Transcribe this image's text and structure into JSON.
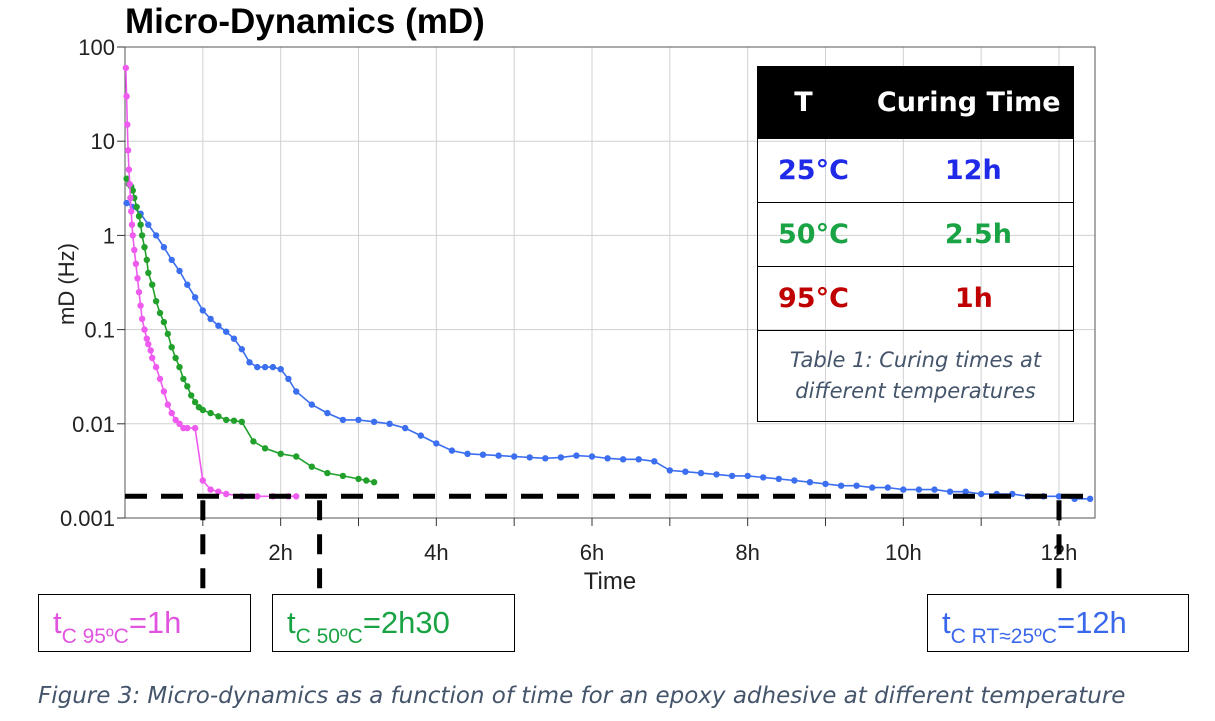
{
  "title": "Micro-Dynamics (mD)",
  "chart_data": {
    "type": "scatter",
    "title": "Micro-Dynamics (mD)",
    "xlabel": "Time",
    "ylabel": "mD (Hz)",
    "x_unit": "h",
    "xlim": [
      0,
      12.5
    ],
    "ylim": [
      0.001,
      100
    ],
    "yscale": "log",
    "x_ticks": [
      0,
      1,
      2,
      3,
      4,
      5,
      6,
      7,
      8,
      9,
      10,
      11,
      12
    ],
    "x_tick_labels": [
      {
        "x": 2,
        "label": "2h"
      },
      {
        "x": 4,
        "label": "4h"
      },
      {
        "x": 6,
        "label": "6h"
      },
      {
        "x": 8,
        "label": "8h"
      },
      {
        "x": 10,
        "label": "10h"
      },
      {
        "x": 12,
        "label": "12h"
      }
    ],
    "y_ticks": [
      0.001,
      0.01,
      0.1,
      1,
      10,
      100
    ],
    "y_tick_labels": [
      "0.001",
      "0.01",
      "0.1",
      "1",
      "10",
      "100"
    ],
    "grid": true,
    "series": [
      {
        "key": "25C",
        "color": "#3c6ef0",
        "points": [
          [
            0.02,
            2.2
          ],
          [
            0.1,
            2.0
          ],
          [
            0.2,
            1.7
          ],
          [
            0.3,
            1.3
          ],
          [
            0.4,
            1.0
          ],
          [
            0.5,
            0.75
          ],
          [
            0.6,
            0.55
          ],
          [
            0.7,
            0.42
          ],
          [
            0.8,
            0.3
          ],
          [
            0.9,
            0.22
          ],
          [
            1.0,
            0.16
          ],
          [
            1.1,
            0.13
          ],
          [
            1.2,
            0.11
          ],
          [
            1.3,
            0.095
          ],
          [
            1.4,
            0.08
          ],
          [
            1.5,
            0.062
          ],
          [
            1.6,
            0.045
          ],
          [
            1.7,
            0.04
          ],
          [
            1.8,
            0.04
          ],
          [
            1.9,
            0.04
          ],
          [
            2.0,
            0.038
          ],
          [
            2.1,
            0.03
          ],
          [
            2.2,
            0.022
          ],
          [
            2.4,
            0.016
          ],
          [
            2.6,
            0.013
          ],
          [
            2.8,
            0.011
          ],
          [
            3.0,
            0.011
          ],
          [
            3.2,
            0.0105
          ],
          [
            3.4,
            0.01
          ],
          [
            3.6,
            0.009
          ],
          [
            3.8,
            0.0075
          ],
          [
            4.0,
            0.0062
          ],
          [
            4.2,
            0.0052
          ],
          [
            4.4,
            0.0048
          ],
          [
            4.6,
            0.0047
          ],
          [
            4.8,
            0.0046
          ],
          [
            5.0,
            0.0045
          ],
          [
            5.2,
            0.0044
          ],
          [
            5.4,
            0.0043
          ],
          [
            5.6,
            0.0044
          ],
          [
            5.8,
            0.0046
          ],
          [
            6.0,
            0.0045
          ],
          [
            6.2,
            0.0043
          ],
          [
            6.4,
            0.0042
          ],
          [
            6.6,
            0.0042
          ],
          [
            6.8,
            0.004
          ],
          [
            7.0,
            0.0032
          ],
          [
            7.2,
            0.0031
          ],
          [
            7.4,
            0.003
          ],
          [
            7.6,
            0.0029
          ],
          [
            7.8,
            0.0028
          ],
          [
            8.0,
            0.0028
          ],
          [
            8.2,
            0.0027
          ],
          [
            8.4,
            0.0026
          ],
          [
            8.6,
            0.0025
          ],
          [
            8.8,
            0.0024
          ],
          [
            9.0,
            0.0023
          ],
          [
            9.2,
            0.0022
          ],
          [
            9.4,
            0.0022
          ],
          [
            9.6,
            0.0021
          ],
          [
            9.8,
            0.0021
          ],
          [
            10.0,
            0.002
          ],
          [
            10.2,
            0.002
          ],
          [
            10.4,
            0.002
          ],
          [
            10.6,
            0.0019
          ],
          [
            10.8,
            0.0019
          ],
          [
            11.0,
            0.0018
          ],
          [
            11.2,
            0.0018
          ],
          [
            11.4,
            0.0018
          ],
          [
            11.6,
            0.0017
          ],
          [
            11.8,
            0.0017
          ],
          [
            12.0,
            0.0017
          ],
          [
            12.2,
            0.0016
          ],
          [
            12.4,
            0.0016
          ]
        ]
      },
      {
        "key": "50C",
        "color": "#21a12b",
        "points": [
          [
            0.02,
            4.0
          ],
          [
            0.05,
            3.5
          ],
          [
            0.08,
            3.3
          ],
          [
            0.1,
            3.0
          ],
          [
            0.12,
            2.5
          ],
          [
            0.15,
            2.0
          ],
          [
            0.18,
            1.6
          ],
          [
            0.2,
            1.3
          ],
          [
            0.22,
            1.0
          ],
          [
            0.25,
            0.75
          ],
          [
            0.28,
            0.55
          ],
          [
            0.3,
            0.4
          ],
          [
            0.35,
            0.3
          ],
          [
            0.4,
            0.2
          ],
          [
            0.45,
            0.15
          ],
          [
            0.5,
            0.12
          ],
          [
            0.55,
            0.09
          ],
          [
            0.6,
            0.065
          ],
          [
            0.65,
            0.05
          ],
          [
            0.7,
            0.04
          ],
          [
            0.75,
            0.03
          ],
          [
            0.8,
            0.025
          ],
          [
            0.85,
            0.02
          ],
          [
            0.9,
            0.017
          ],
          [
            0.95,
            0.015
          ],
          [
            1.0,
            0.014
          ],
          [
            1.1,
            0.013
          ],
          [
            1.2,
            0.012
          ],
          [
            1.3,
            0.011
          ],
          [
            1.4,
            0.0108
          ],
          [
            1.5,
            0.0105
          ],
          [
            1.65,
            0.0065
          ],
          [
            1.8,
            0.0055
          ],
          [
            2.0,
            0.0048
          ],
          [
            2.2,
            0.0045
          ],
          [
            2.4,
            0.0035
          ],
          [
            2.6,
            0.003
          ],
          [
            2.8,
            0.0028
          ],
          [
            3.0,
            0.0026
          ],
          [
            3.1,
            0.0025
          ],
          [
            3.2,
            0.0024
          ]
        ]
      },
      {
        "key": "95C",
        "color": "#ef5bef",
        "points": [
          [
            0.01,
            60
          ],
          [
            0.02,
            30
          ],
          [
            0.03,
            15
          ],
          [
            0.04,
            8
          ],
          [
            0.05,
            5
          ],
          [
            0.06,
            3.5
          ],
          [
            0.07,
            2.5
          ],
          [
            0.08,
            1.8
          ],
          [
            0.09,
            1.3
          ],
          [
            0.1,
            1.0
          ],
          [
            0.12,
            0.7
          ],
          [
            0.14,
            0.5
          ],
          [
            0.16,
            0.35
          ],
          [
            0.18,
            0.25
          ],
          [
            0.2,
            0.18
          ],
          [
            0.22,
            0.13
          ],
          [
            0.25,
            0.1
          ],
          [
            0.28,
            0.08
          ],
          [
            0.3,
            0.07
          ],
          [
            0.33,
            0.06
          ],
          [
            0.35,
            0.05
          ],
          [
            0.4,
            0.04
          ],
          [
            0.45,
            0.03
          ],
          [
            0.5,
            0.022
          ],
          [
            0.55,
            0.016
          ],
          [
            0.6,
            0.013
          ],
          [
            0.65,
            0.011
          ],
          [
            0.7,
            0.01
          ],
          [
            0.75,
            0.009
          ],
          [
            0.8,
            0.009
          ],
          [
            0.9,
            0.009
          ],
          [
            1.0,
            0.0025
          ],
          [
            1.1,
            0.002
          ],
          [
            1.2,
            0.0019
          ],
          [
            1.3,
            0.0018
          ],
          [
            1.5,
            0.0017
          ],
          [
            1.7,
            0.0017
          ],
          [
            1.9,
            0.0017
          ],
          [
            2.1,
            0.0017
          ],
          [
            2.2,
            0.0017
          ]
        ]
      }
    ],
    "threshold_line": {
      "y": 0.0017,
      "x_range": [
        0,
        12.5
      ]
    },
    "markers_x": [
      1.0,
      2.5,
      12.0
    ]
  },
  "table": {
    "header_t": "T",
    "header_curing": "Curing Time",
    "rows": [
      {
        "t": "25°C",
        "value": "12h",
        "color": "#1f29e8"
      },
      {
        "t": "50°C",
        "value": "2.5h",
        "color": "#1aa344"
      },
      {
        "t": "95°C",
        "value": "1h",
        "color": "#c00000"
      }
    ],
    "caption_line1": "Table 1: Curing times at",
    "caption_line2": "different temperatures"
  },
  "labels": {
    "tc95": {
      "main": "t",
      "sub": "C 95ºC",
      "value": "=1h",
      "color": "#e054e0"
    },
    "tc50": {
      "main": "t",
      "sub": "C 50ºC",
      "value": "=2h30",
      "color": "#1aa344"
    },
    "tcRT": {
      "main": "t",
      "sub": "C RT≈25ºC",
      "value": "=12h",
      "color": "#3a68ea"
    }
  },
  "figure_caption": "Figure 3: Micro-dynamics as a function of time for an epoxy adhesive at different temperature"
}
